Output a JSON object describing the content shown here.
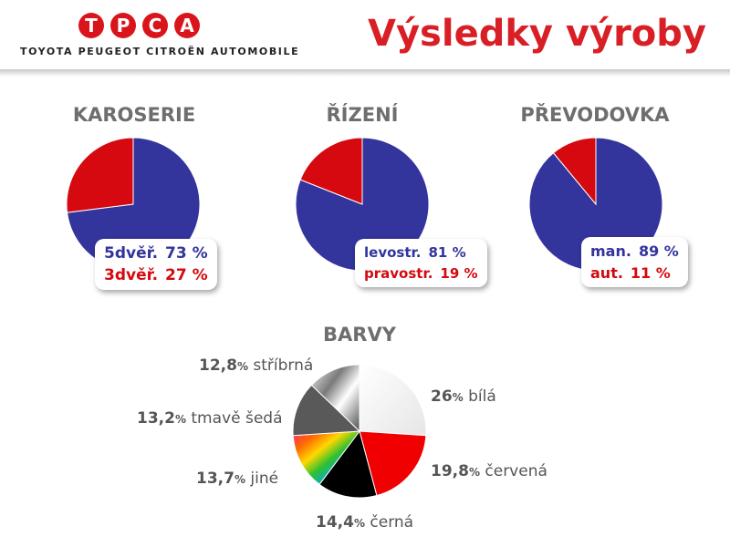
{
  "header": {
    "logo_letters": [
      "T",
      "P",
      "C",
      "A"
    ],
    "logo_subtitle": "TOYOTA PEUGEOT CITROËN AUTOMOBILE",
    "title": "Výsledky výroby"
  },
  "colors": {
    "blue": "#33349c",
    "red": "#d5090f",
    "grey_text": "#6e6e6e"
  },
  "chart_data": [
    {
      "type": "pie",
      "title": "KAROSERIE",
      "labels": [
        "5dvěř.",
        "3dvěř."
      ],
      "values": [
        73,
        27
      ],
      "value_text": [
        "73 %",
        "27 %"
      ],
      "colors": [
        "#33349c",
        "#d5090f"
      ]
    },
    {
      "type": "pie",
      "title": "ŘÍZENÍ",
      "labels": [
        "levostr.",
        "pravostr."
      ],
      "values": [
        81,
        19
      ],
      "value_text": [
        "81 %",
        "19 %"
      ],
      "colors": [
        "#33349c",
        "#d5090f"
      ]
    },
    {
      "type": "pie",
      "title": "PŘEVODOVKA",
      "labels": [
        "man.",
        "aut."
      ],
      "values": [
        89,
        11
      ],
      "value_text": [
        "89 %",
        "11 %"
      ],
      "colors": [
        "#33349c",
        "#d5090f"
      ]
    },
    {
      "type": "pie",
      "title": "BARVY",
      "labels": [
        "bílá",
        "červená",
        "černá",
        "jiné",
        "tmavě šedá",
        "stříbrná"
      ],
      "values": [
        26,
        19.8,
        14.4,
        13.7,
        13.2,
        12.8
      ],
      "value_text": [
        "26",
        "19,8",
        "14,4",
        "13,7",
        "13,2",
        "12,8"
      ],
      "percent_sign": "%",
      "colors": [
        "#f0f0f0",
        "#f00000",
        "#000000",
        "rainbow",
        "#595959",
        "silver"
      ]
    }
  ]
}
